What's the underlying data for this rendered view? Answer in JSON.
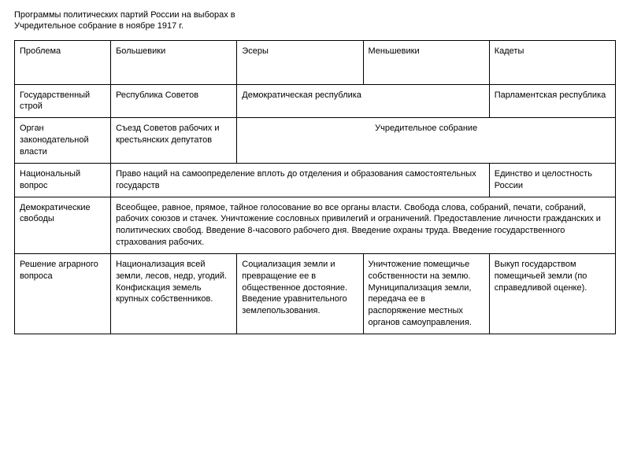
{
  "title_line1": "Программы политических партий России на выборах в",
  "title_line2": "Учредительное собрание в ноябре 1917 г.",
  "header": {
    "col1": "Проблема",
    "col2": "Большевики",
    "col3": "Эсеры",
    "col4": "Меньшевики",
    "col5": "Кадеты"
  },
  "row1": {
    "label": "Государственный строй",
    "c2": "Республика Советов",
    "c3_4": "Демократическая республика",
    "c5": "Парламентская республика"
  },
  "row2": {
    "label": "Орган законодательной власти",
    "c2": "Съезд Советов рабочих и крестьянских депутатов",
    "c3_5": "Учредительное собрание"
  },
  "row3": {
    "label": "Национальный вопрос",
    "c2_4": "Право наций на самоопределение вплоть до отделения и образования самостоятельных государств",
    "c5": "Единство и целостность России"
  },
  "row4": {
    "label": "Демократические свободы",
    "c2_5": "Всеобщее, равное, прямое, тайное голосование во все органы власти. Свобода слова, собраний, печати, собраний, рабочих союзов и стачек. Уничтожение сословных привилегий и ограничений. Предоставление личности гражданских и политических свобод. Введение 8-часового рабочего дня. Введение охраны труда. Введение государственного страхования рабочих."
  },
  "row5": {
    "label": "Решение аграрного вопроса",
    "c2": "Национализация всей земли, лесов, недр, угодий. Конфискация земель крупных собственников.",
    "c3": "Социализация земли и превращение ее в общественное достояние. Введение уравнительного землепользования.",
    "c4": "Уничтожение помещичье собственности на землю. Муниципализация земли, передача ее в распоряжение местных органов самоуправления.",
    "c5": "Выкуп государством помещичьей земли (по справедливой оценке)."
  }
}
